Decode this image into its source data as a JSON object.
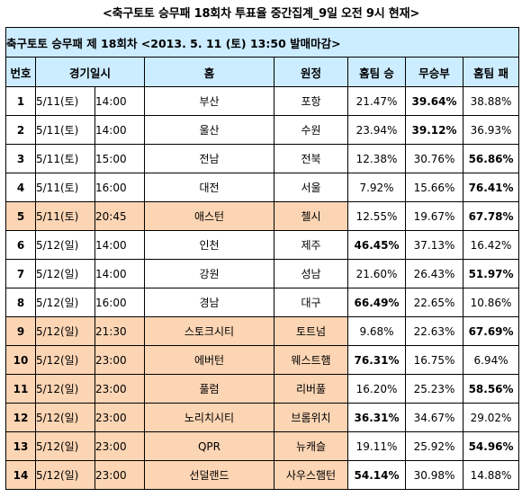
{
  "title": "<축구토토 승무패 18회차 투표율 중간집계_9일 오전 9시 현재>",
  "subheader": "축구토토 승무패 제 18회차 <2013. 5. 11 (토) 13:50 발매마감>",
  "columns": {
    "no": "번호",
    "datetime": "경기일시",
    "home": "홈",
    "away": "원정",
    "win": "홈팀 승",
    "draw": "무승부",
    "lose": "홈팀 패"
  },
  "rows": [
    {
      "no": "1",
      "date": "5/11(토)",
      "time": "14:00",
      "home": "부산",
      "away": "포항",
      "win": "21.47%",
      "draw": "39.64%",
      "lose": "38.88%",
      "max": "draw",
      "highlight": false
    },
    {
      "no": "2",
      "date": "5/11(토)",
      "time": "14:00",
      "home": "울산",
      "away": "수원",
      "win": "23.94%",
      "draw": "39.12%",
      "lose": "36.93%",
      "max": "draw",
      "highlight": false
    },
    {
      "no": "3",
      "date": "5/11(토)",
      "time": "15:00",
      "home": "전남",
      "away": "전북",
      "win": "12.38%",
      "draw": "30.76%",
      "lose": "56.86%",
      "max": "lose",
      "highlight": false
    },
    {
      "no": "4",
      "date": "5/11(토)",
      "time": "16:00",
      "home": "대전",
      "away": "서울",
      "win": "7.92%",
      "draw": "15.66%",
      "lose": "76.41%",
      "max": "lose",
      "highlight": false
    },
    {
      "no": "5",
      "date": "5/11(토)",
      "time": "20:45",
      "home": "애스턴",
      "away": "첼시",
      "win": "12.55%",
      "draw": "19.67%",
      "lose": "67.78%",
      "max": "lose",
      "highlight": true
    },
    {
      "no": "6",
      "date": "5/12(일)",
      "time": "14:00",
      "home": "인천",
      "away": "제주",
      "win": "46.45%",
      "draw": "37.13%",
      "lose": "16.42%",
      "max": "win",
      "highlight": false
    },
    {
      "no": "7",
      "date": "5/12(일)",
      "time": "14:00",
      "home": "강원",
      "away": "성남",
      "win": "21.60%",
      "draw": "26.43%",
      "lose": "51.97%",
      "max": "lose",
      "highlight": false
    },
    {
      "no": "8",
      "date": "5/12(일)",
      "time": "16:00",
      "home": "경남",
      "away": "대구",
      "win": "66.49%",
      "draw": "22.65%",
      "lose": "10.86%",
      "max": "win",
      "highlight": false
    },
    {
      "no": "9",
      "date": "5/12(일)",
      "time": "21:30",
      "home": "스토크시티",
      "away": "토트넘",
      "win": "9.68%",
      "draw": "22.63%",
      "lose": "67.69%",
      "max": "lose",
      "highlight": true
    },
    {
      "no": "10",
      "date": "5/12(일)",
      "time": "23:00",
      "home": "에버턴",
      "away": "웨스트햄",
      "win": "76.31%",
      "draw": "16.75%",
      "lose": "6.94%",
      "max": "win",
      "highlight": true
    },
    {
      "no": "11",
      "date": "5/12(일)",
      "time": "23:00",
      "home": "풀럼",
      "away": "리버풀",
      "win": "16.20%",
      "draw": "25.23%",
      "lose": "58.56%",
      "max": "lose",
      "highlight": true
    },
    {
      "no": "12",
      "date": "5/12(일)",
      "time": "23:00",
      "home": "노리치시티",
      "away": "브롬위치",
      "win": "36.31%",
      "draw": "34.67%",
      "lose": "29.02%",
      "max": "win",
      "highlight": true
    },
    {
      "no": "13",
      "date": "5/12(일)",
      "time": "23:00",
      "home": "QPR",
      "away": "뉴캐슬",
      "win": "19.11%",
      "draw": "25.92%",
      "lose": "54.96%",
      "max": "lose",
      "highlight": true
    },
    {
      "no": "14",
      "date": "5/12(일)",
      "time": "23:00",
      "home": "선덜랜드",
      "away": "사우스햄턴",
      "win": "54.14%",
      "draw": "30.98%",
      "lose": "14.88%",
      "max": "win",
      "highlight": true
    }
  ],
  "colors": {
    "header_bg": "#ccecff",
    "highlight_bg": "#fcd5b4"
  }
}
